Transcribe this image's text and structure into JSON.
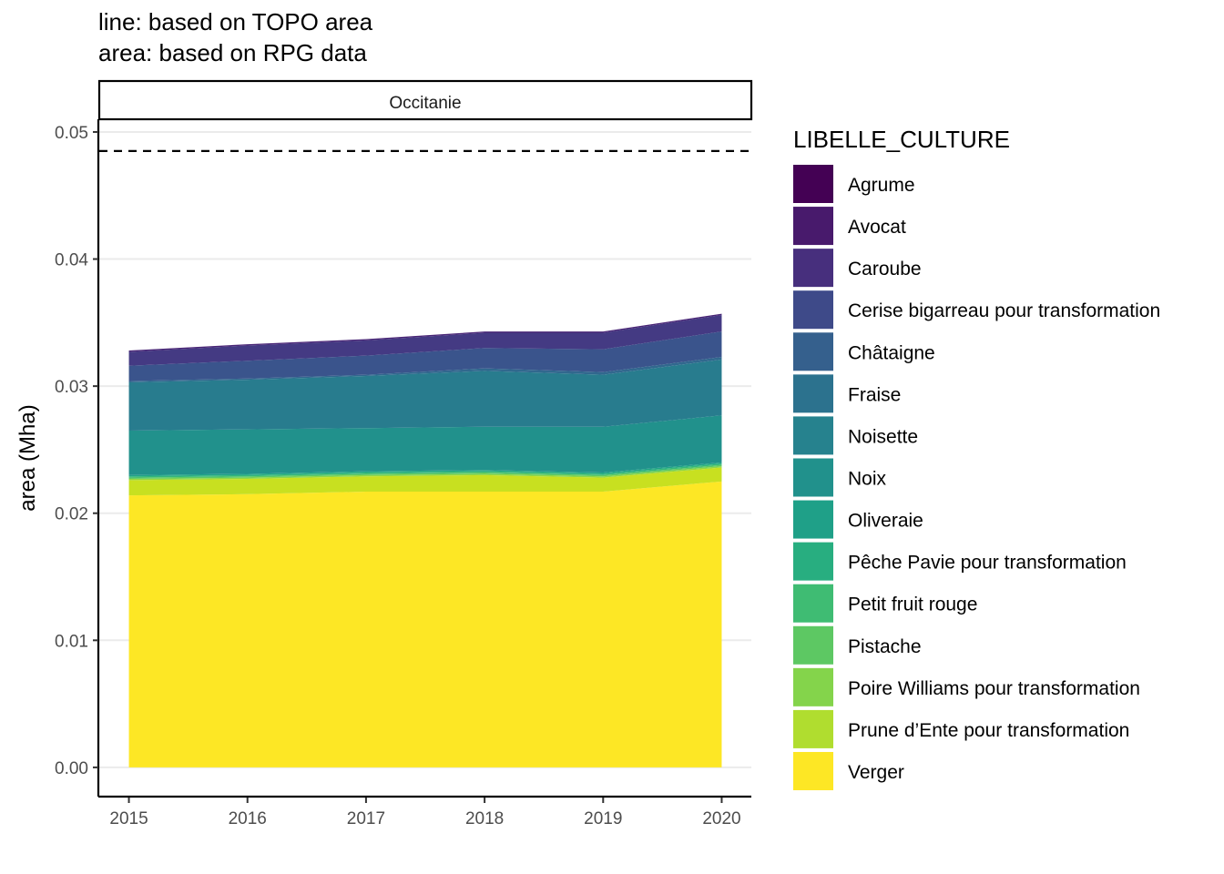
{
  "chart_data": {
    "type": "area",
    "title_lines": [
      "line: based on TOPO area",
      "area: based on RPG data"
    ],
    "facet": "Occitanie",
    "ylabel": "area (Mha)",
    "xlabel": "",
    "x": [
      2015,
      2016,
      2017,
      2018,
      2019,
      2020
    ],
    "xlim": [
      2014.75,
      2020.25
    ],
    "ylim": [
      -0.0023,
      0.051
    ],
    "yticks": [
      0.0,
      0.01,
      0.02,
      0.03,
      0.04,
      0.05
    ],
    "ytick_labels": [
      "0.00",
      "0.01",
      "0.02",
      "0.03",
      "0.04",
      "0.05"
    ],
    "grid": true,
    "reference_line": {
      "value": 0.0485,
      "style": "dashed"
    },
    "legend": {
      "title": "LIBELLE_CULTURE",
      "position": "right"
    },
    "series": [
      {
        "name": "Verger",
        "color": "#FDE725",
        "values": [
          0.0214,
          0.0215,
          0.0217,
          0.0217,
          0.0217,
          0.0225
        ]
      },
      {
        "name": "Prune d’Ente pour transformation",
        "color": "#C8E020",
        "values": [
          0.0012,
          0.0012,
          0.0012,
          0.0013,
          0.0011,
          0.0011
        ]
      },
      {
        "name": "Poire Williams pour transformation",
        "color": "#90D743",
        "values": [
          0.0001,
          0.0001,
          0.0001,
          0.0001,
          0.0001,
          0.0001
        ]
      },
      {
        "name": "Pistache",
        "color": "#5EC962",
        "values": [
          0.0001,
          0.0001,
          0.0001,
          0.0001,
          0.0001,
          0.0001
        ]
      },
      {
        "name": "Petit fruit rouge",
        "color": "#35B779",
        "values": [
          0.0001,
          0.0001,
          0.0001,
          0.0001,
          0.0001,
          0.0001
        ]
      },
      {
        "name": "Pêche Pavie pour transformation",
        "color": "#20A486",
        "values": [
          0.0001,
          0.0001,
          0.0001,
          0.0001,
          0.0001,
          0.0001
        ]
      },
      {
        "name": "Oliveraie",
        "color": "#21918C",
        "values": [
          0.0035,
          0.0035,
          0.0034,
          0.0034,
          0.0036,
          0.0037
        ]
      },
      {
        "name": "Noix",
        "color": "#287C8E",
        "values": [
          0.0038,
          0.0039,
          0.0041,
          0.0044,
          0.0041,
          0.0044
        ]
      },
      {
        "name": "Noisette",
        "color": "#31688E",
        "values": [
          0.0001,
          0.0001,
          0.0001,
          0.0002,
          0.0002,
          0.0002
        ]
      },
      {
        "name": "Fraise",
        "color": "#3A548C",
        "values": [
          0.0012,
          0.0014,
          0.0015,
          0.0016,
          0.0018,
          0.002
        ]
      },
      {
        "name": "Châtaigne",
        "color": "#443A83",
        "values": [
          0.0011,
          0.0012,
          0.0012,
          0.0012,
          0.0013,
          0.0013
        ]
      },
      {
        "name": "Cerise bigarreau pour transformation",
        "color": "#482576",
        "values": [
          0.0001,
          0.0001,
          0.0001,
          0.0001,
          0.0001,
          0.0001
        ]
      },
      {
        "name": "Caroube",
        "color": "#440154",
        "values": [
          0.0,
          0.0,
          0.0,
          0.0,
          0.0,
          0.0
        ]
      },
      {
        "name": "Avocat",
        "color": "#46085C",
        "values": [
          0.0,
          0.0,
          0.0,
          0.0,
          0.0,
          0.0
        ]
      },
      {
        "name": "Agrume",
        "color": "#35004A",
        "values": [
          0.0,
          0.0,
          0.0,
          0.0,
          0.0,
          0.0
        ]
      }
    ],
    "legend_order": [
      "Agrume",
      "Avocat",
      "Caroube",
      "Cerise bigarreau pour transformation",
      "Châtaigne",
      "Fraise",
      "Noisette",
      "Noix",
      "Oliveraie",
      "Pêche Pavie pour transformation",
      "Petit fruit rouge",
      "Pistache",
      "Poire Williams pour transformation",
      "Prune d’Ente pour transformation",
      "Verger"
    ],
    "legend_colors": [
      "#440154",
      "#481A6C",
      "#472F7D",
      "#3E4A89",
      "#35608D",
      "#2C728E",
      "#26828E",
      "#21918C",
      "#1FA088",
      "#28AE80",
      "#3FBC73",
      "#5DC863",
      "#84D44B",
      "#B0DD2F",
      "#FDE725"
    ]
  }
}
